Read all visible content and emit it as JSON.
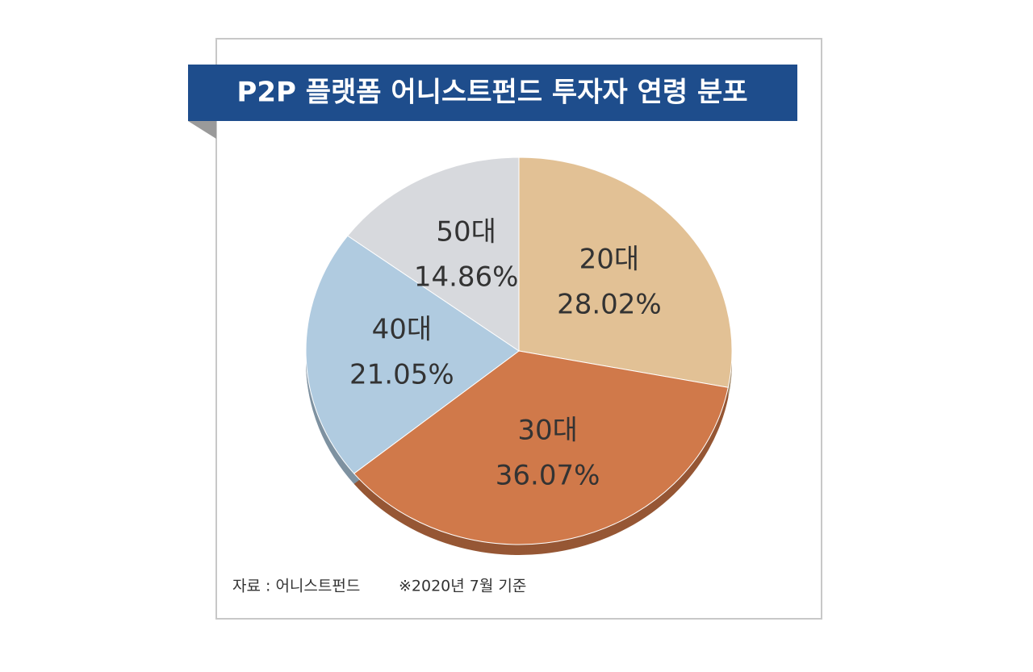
{
  "chart_data": {
    "type": "pie",
    "title": "P2P 플랫폼 어니스트펀드 투자자 연령 분포",
    "categories": [
      "20대",
      "30대",
      "40대",
      "50대"
    ],
    "values": [
      28.02,
      36.07,
      21.05,
      14.86
    ],
    "value_labels": [
      "28.02%",
      "36.07%",
      "21.05%",
      "14.86%"
    ],
    "colors": [
      "#e2c195",
      "#d0794a",
      "#b0cbe0",
      "#d7d9dd"
    ],
    "source": "자료 : 어니스트펀드",
    "note": "※2020년 7월 기준"
  }
}
